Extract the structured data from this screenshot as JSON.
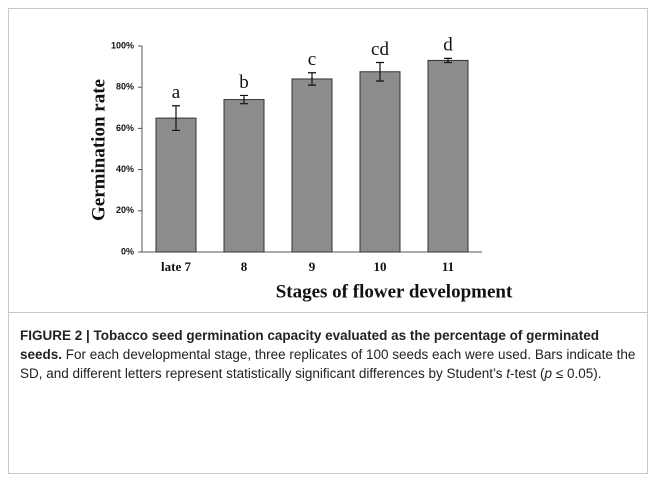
{
  "chart_data": {
    "type": "bar",
    "ylabel": "Germination rate",
    "xlabel": "Stages of flower development",
    "categories": [
      "late 7",
      "8",
      "9",
      "10",
      "11"
    ],
    "values": [
      65,
      74,
      84,
      87.5,
      93
    ],
    "errors": [
      6,
      2,
      3,
      4.5,
      1
    ],
    "letters": [
      "a",
      "b",
      "c",
      "cd",
      "d"
    ],
    "color": "#8c8c8c",
    "ylim": [
      0,
      100
    ],
    "yticks": [
      {
        "value": 0,
        "label": "0%"
      },
      {
        "value": 20,
        "label": "20%"
      },
      {
        "value": 40,
        "label": "40%"
      },
      {
        "value": 60,
        "label": "60%"
      },
      {
        "value": 80,
        "label": "80%"
      },
      {
        "value": 100,
        "label": "100%"
      }
    ],
    "grid": false
  },
  "caption": {
    "label": "FIGURE 2 | Tobacco seed germination capacity evaluated as the percentage of germinated seeds.",
    "text1": " For each developmental stage, three replicates of 100 seeds each were used. Bars indicate the SD, and different letters represent statistically significant differences by Student’s ",
    "italic1": "t",
    "text2": "-test (",
    "italic2": "p",
    "text3": " ≤ 0.05)."
  }
}
